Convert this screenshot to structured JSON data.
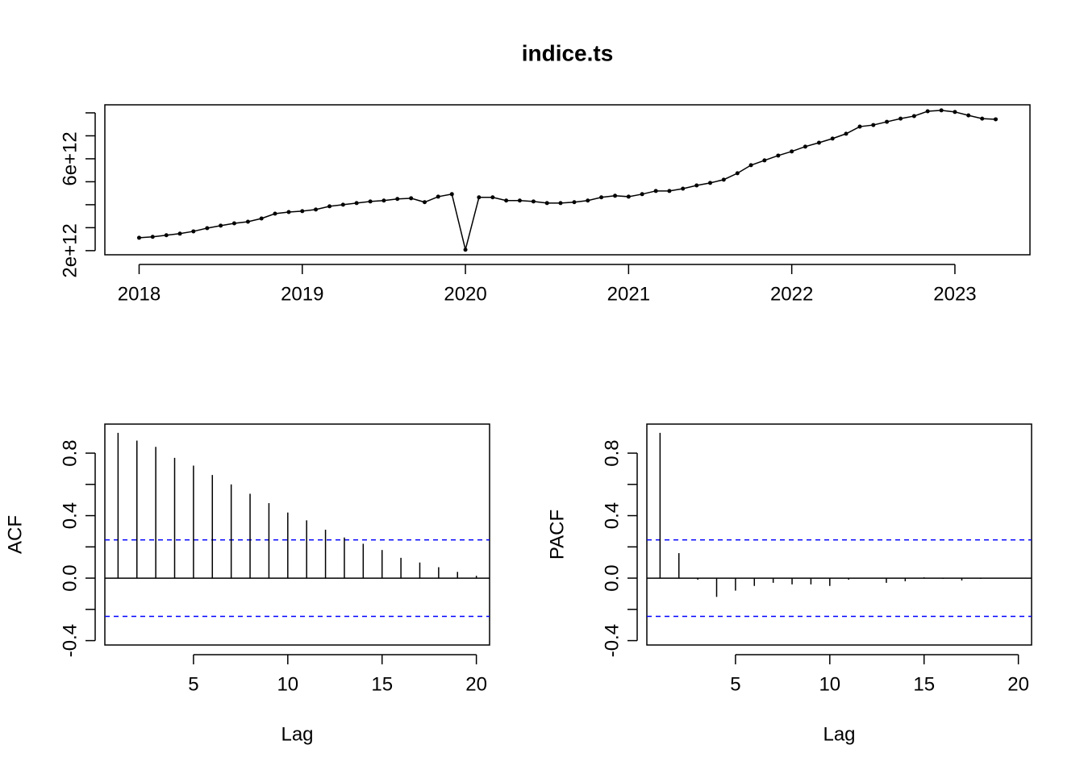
{
  "chart_data": [
    {
      "type": "line",
      "title": "indice.ts",
      "color": "#000000",
      "x": [
        2018,
        2018.083,
        2018.167,
        2018.25,
        2018.333,
        2018.417,
        2018.5,
        2018.583,
        2018.667,
        2018.75,
        2018.833,
        2018.917,
        2019,
        2019.083,
        2019.167,
        2019.25,
        2019.333,
        2019.417,
        2019.5,
        2019.583,
        2019.667,
        2019.75,
        2019.833,
        2019.917,
        2020,
        2020.083,
        2020.167,
        2020.25,
        2020.333,
        2020.417,
        2020.5,
        2020.583,
        2020.667,
        2020.75,
        2020.833,
        2020.917,
        2021,
        2021.083,
        2021.167,
        2021.25,
        2021.333,
        2021.417,
        2021.5,
        2021.583,
        2021.667,
        2021.75,
        2021.833,
        2021.917,
        2022,
        2022.083,
        2022.167,
        2022.25,
        2022.333,
        2022.417,
        2022.5,
        2022.583,
        2022.667,
        2022.75,
        2022.833,
        2022.917,
        2023,
        2023.083,
        2023.167,
        2023.25
      ],
      "values": [
        2560000000000.0,
        2600000000000.0,
        2670000000000.0,
        2740000000000.0,
        2840000000000.0,
        2980000000000.0,
        3090000000000.0,
        3190000000000.0,
        3260000000000.0,
        3400000000000.0,
        3610000000000.0,
        3680000000000.0,
        3720000000000.0,
        3790000000000.0,
        3930000000000.0,
        4000000000000.0,
        4070000000000.0,
        4140000000000.0,
        4180000000000.0,
        4250000000000.0,
        4280000000000.0,
        4110000000000.0,
        4350000000000.0,
        4460000000000.0,
        2040000000000.0,
        4320000000000.0,
        4320000000000.0,
        4180000000000.0,
        4180000000000.0,
        4140000000000.0,
        4070000000000.0,
        4070000000000.0,
        4110000000000.0,
        4180000000000.0,
        4320000000000.0,
        4390000000000.0,
        4350000000000.0,
        4460000000000.0,
        4600000000000.0,
        4600000000000.0,
        4700000000000.0,
        4840000000000.0,
        4950000000000.0,
        5090000000000.0,
        5370000000000.0,
        5720000000000.0,
        5930000000000.0,
        6140000000000.0,
        6320000000000.0,
        6530000000000.0,
        6700000000000.0,
        6880000000000.0,
        7090000000000.0,
        7400000000000.0,
        7470000000000.0,
        7610000000000.0,
        7750000000000.0,
        7860000000000.0,
        8070000000000.0,
        8110000000000.0,
        8040000000000.0,
        7890000000000.0,
        7750000000000.0,
        7720000000000.0
      ],
      "xlim": [
        2017.79,
        2023.46
      ],
      "ylim": [
        1820000000000.0,
        8350000000000.0
      ],
      "xticks": [
        2018,
        2019,
        2020,
        2021,
        2022,
        2023
      ],
      "yticks": [
        {
          "value": 2000000000000.0,
          "label": "2e+12"
        },
        {
          "value": 3000000000000.0,
          "label": null
        },
        {
          "value": 4000000000000.0,
          "label": null
        },
        {
          "value": 5000000000000.0,
          "label": null
        },
        {
          "value": 6000000000000.0,
          "label": "6e+12"
        },
        {
          "value": 7000000000000.0,
          "label": null
        },
        {
          "value": 8000000000000.0,
          "label": null
        }
      ]
    },
    {
      "type": "bar",
      "xlabel": "Lag",
      "ylabel": "ACF",
      "color": "#000000",
      "ci_color": "#0000ff",
      "x": [
        1,
        2,
        3,
        4,
        5,
        6,
        7,
        8,
        9,
        10,
        11,
        12,
        13,
        14,
        15,
        16,
        17,
        18,
        19,
        20
      ],
      "values": [
        0.93,
        0.88,
        0.84,
        0.77,
        0.72,
        0.66,
        0.6,
        0.54,
        0.48,
        0.42,
        0.37,
        0.31,
        0.26,
        0.22,
        0.18,
        0.13,
        0.1,
        0.07,
        0.04,
        0.015
      ],
      "ci": [
        0.245,
        -0.245
      ],
      "xlim": [
        0.3,
        20.7
      ],
      "ylim": [
        -0.428,
        0.986
      ],
      "xticks": [
        5,
        10,
        15,
        20
      ],
      "yticks": [
        -0.4,
        {
          "value": -0.2,
          "label": null
        },
        {
          "value": 0,
          "label": "0.0"
        },
        {
          "value": 0.2,
          "label": null
        },
        0.4,
        {
          "value": 0.6,
          "label": null
        },
        0.8
      ]
    },
    {
      "type": "bar",
      "xlabel": "Lag",
      "ylabel": "PACF",
      "color": "#000000",
      "ci_color": "#0000ff",
      "x": [
        1,
        2,
        3,
        4,
        5,
        6,
        7,
        8,
        9,
        10,
        11,
        12,
        13,
        14,
        15,
        16,
        17,
        18,
        19,
        20
      ],
      "values": [
        0.93,
        0.16,
        -0.01,
        -0.12,
        -0.08,
        -0.05,
        -0.03,
        -0.04,
        -0.04,
        -0.05,
        -0.01,
        0.0,
        -0.03,
        -0.02,
        0.005,
        -0.005,
        -0.015,
        -0.005,
        0,
        0
      ],
      "ci": [
        0.245,
        -0.245
      ],
      "xlim": [
        0.3,
        20.7
      ],
      "ylim": [
        -0.428,
        0.986
      ],
      "xticks": [
        5,
        10,
        15,
        20
      ],
      "yticks": [
        -0.4,
        {
          "value": -0.2,
          "label": null
        },
        {
          "value": 0,
          "label": "0.0"
        },
        {
          "value": 0.2,
          "label": null
        },
        0.4,
        {
          "value": 0.6,
          "label": null
        },
        0.8
      ]
    }
  ]
}
